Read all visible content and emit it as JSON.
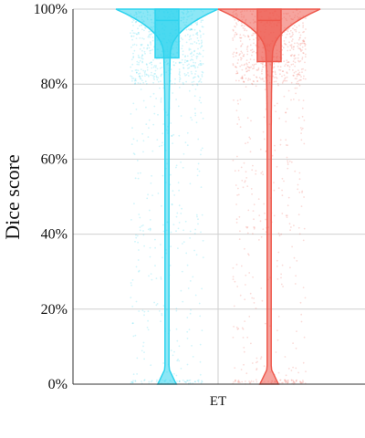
{
  "chart_data": {
    "type": "violin",
    "ylabel": "Dice score",
    "categories": [
      "ET"
    ],
    "y_ticks": [
      "0%",
      "20%",
      "40%",
      "60%",
      "80%",
      "100%"
    ],
    "ylim": [
      0,
      100
    ],
    "grid": true,
    "series": [
      {
        "color": "#2ed3ee",
        "median": 97,
        "q1": 87,
        "q3": 100,
        "density_peaks": [
          0,
          99
        ]
      },
      {
        "color": "#ee5a4e",
        "median": 97,
        "q1": 86,
        "q3": 100,
        "density_peaks": [
          0,
          99
        ]
      }
    ]
  }
}
